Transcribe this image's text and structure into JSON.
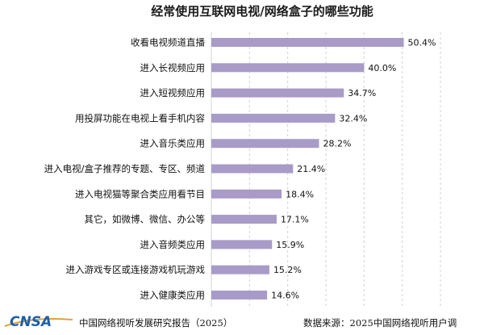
{
  "chart_data": {
    "type": "bar",
    "orientation": "horizontal",
    "title": "经常使用互联网电视/网络盒子的哪些功能",
    "categories": [
      "收看电视频道直播",
      "进入长视频应用",
      "进入短视频应用",
      "用投屏功能在电视上看手机内容",
      "进入音乐类应用",
      "进入电视/盒子推荐的专题、专区、频道",
      "进入电视猫等聚合类应用看节目",
      "其它，如微博、微信、办公等",
      "进入音频类应用",
      "进入游戏专区或连接游戏机玩游戏",
      "进入健康类应用"
    ],
    "values": [
      50.4,
      40.0,
      34.7,
      32.4,
      28.2,
      21.4,
      18.4,
      17.1,
      15.9,
      15.2,
      14.6
    ],
    "value_labels": [
      "50.4%",
      "40.0%",
      "34.7%",
      "32.4%",
      "28.2%",
      "21.4%",
      "18.4%",
      "17.1%",
      "15.9%",
      "15.2%",
      "14.6%"
    ],
    "unit": "%",
    "xlim": [
      0,
      60
    ],
    "grid": true,
    "bar_color": "#a99bc7",
    "grid_color": "#d0d0d0"
  },
  "footer": {
    "logo": "CNSA",
    "report_name": "中国网络视听发展研究报告（2025）",
    "source": "数据来源：2025中国网络视听用户调"
  }
}
